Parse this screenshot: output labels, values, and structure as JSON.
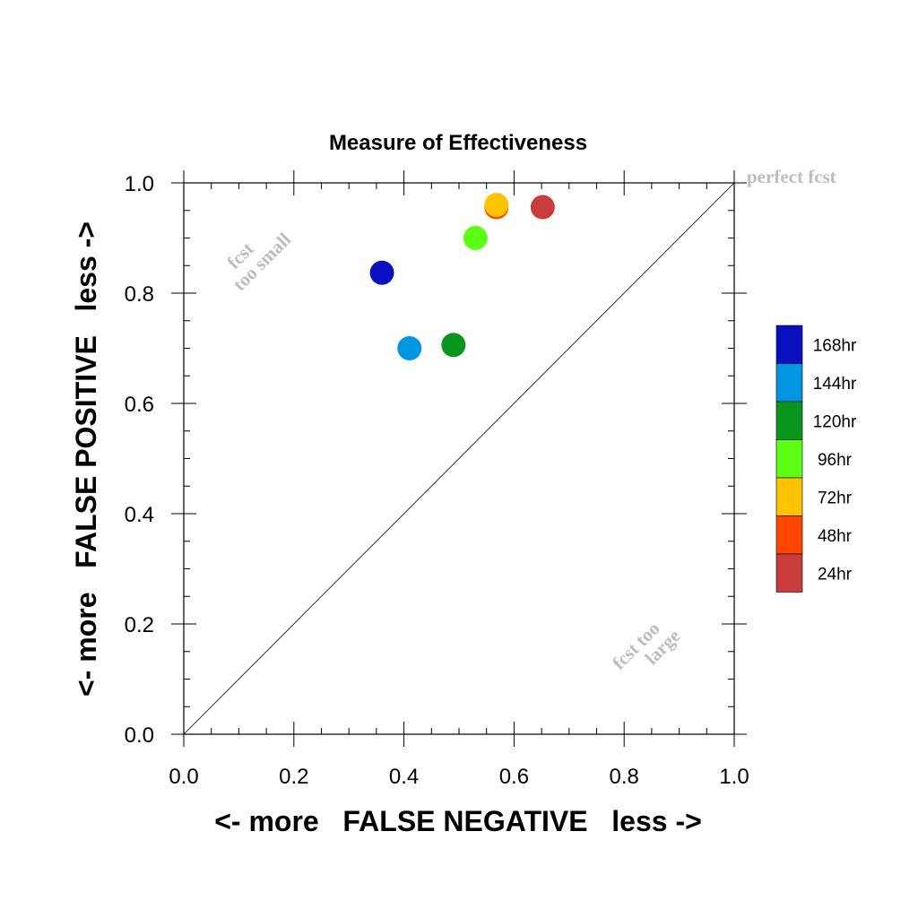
{
  "chart_data": {
    "type": "scatter",
    "title": "Measure of Effectiveness",
    "xlabel": "<- more   FALSE NEGATIVE   less ->",
    "ylabel": "<- more   FALSE POSITIVE   less ->",
    "xlim": [
      0.0,
      1.0
    ],
    "ylim": [
      0.0,
      1.0
    ],
    "xticks": [
      "0.0",
      "0.2",
      "0.4",
      "0.6",
      "0.8",
      "1.0"
    ],
    "yticks": [
      "0.0",
      "0.2",
      "0.4",
      "0.6",
      "0.8",
      "1.0"
    ],
    "grid": false,
    "legend_position": "right",
    "reference_line": "diagonal y = x",
    "annotations": {
      "perfect": "perfect fcst",
      "small_line1": "fcst",
      "small_line2": "too small",
      "large_line1": "fcst too",
      "large_line2": "large"
    },
    "series": [
      {
        "name": "168hr",
        "color": "#0a0fc0",
        "x": 0.36,
        "y": 0.837
      },
      {
        "name": "144hr",
        "color": "#0096e1",
        "x": 0.41,
        "y": 0.7
      },
      {
        "name": "120hr",
        "color": "#0a961e",
        "x": 0.49,
        "y": 0.706
      },
      {
        "name": "96hr",
        "color": "#5aff14",
        "x": 0.53,
        "y": 0.9
      },
      {
        "name": "72hr",
        "color": "#ffc300",
        "x": 0.568,
        "y": 0.96
      },
      {
        "name": "48hr",
        "color": "#ff4600",
        "x": 0.568,
        "y": 0.956
      },
      {
        "name": "24hr",
        "color": "#c83c3c",
        "x": 0.652,
        "y": 0.956
      }
    ]
  }
}
